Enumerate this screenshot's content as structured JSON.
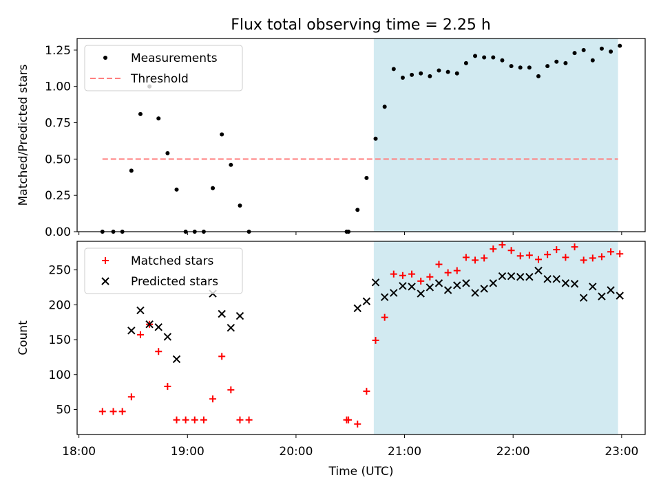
{
  "title": "Flux total observing time = 2.25 h",
  "colors": {
    "observing_span": "#add8e6",
    "measurement": "#000000",
    "threshold": "#ff7f7f",
    "matched": "#ff0000",
    "predicted": "#000000"
  },
  "chart_data": [
    {
      "type": "scatter",
      "ylabel": "Matched/Predicted stars",
      "xlim": [
        "17:59",
        "23:13"
      ],
      "ylim": [
        0,
        1.33
      ],
      "yticks": [
        "0.00",
        "0.25",
        "0.50",
        "0.75",
        "1.00",
        "1.25"
      ],
      "legend": {
        "placement": "top-left",
        "entries": [
          "Measurements",
          "Threshold"
        ]
      },
      "shaded_span": [
        "20:43",
        "22:58"
      ],
      "threshold": {
        "name": "Threshold",
        "y": 0.5,
        "x_start": "18:13",
        "x_end": "22:58"
      },
      "series": [
        {
          "name": "Measurements",
          "marker": "dot",
          "x": [
            "18:13",
            "18:19",
            "18:24",
            "18:29",
            "18:34",
            "18:39",
            "18:44",
            "18:49",
            "18:54",
            "18:59",
            "19:04",
            "19:09",
            "19:14",
            "19:19",
            "19:24",
            "19:29",
            "19:34",
            "20:28",
            "20:29",
            "20:34",
            "20:39",
            "20:44",
            "20:49",
            "20:54",
            "20:59",
            "21:04",
            "21:09",
            "21:14",
            "21:19",
            "21:24",
            "21:29",
            "21:34",
            "21:39",
            "21:44",
            "21:49",
            "21:54",
            "21:59",
            "22:04",
            "22:09",
            "22:14",
            "22:19",
            "22:24",
            "22:29",
            "22:34",
            "22:39",
            "22:44",
            "22:49",
            "22:54",
            "22:59"
          ],
          "y": [
            0.0,
            0.0,
            0.0,
            0.42,
            0.81,
            1.0,
            0.78,
            0.54,
            0.29,
            0.0,
            0.0,
            0.0,
            0.3,
            0.67,
            0.46,
            0.18,
            0.0,
            0.0,
            0.0,
            0.15,
            0.37,
            0.64,
            0.86,
            1.12,
            1.06,
            1.08,
            1.09,
            1.07,
            1.11,
            1.1,
            1.09,
            1.16,
            1.21,
            1.2,
            1.2,
            1.18,
            1.14,
            1.13,
            1.13,
            1.07,
            1.14,
            1.17,
            1.16,
            1.23,
            1.25,
            1.18,
            1.26,
            1.24,
            1.28
          ]
        }
      ]
    },
    {
      "type": "scatter",
      "xlabel": "Time (UTC)",
      "ylabel": "Count",
      "xlim": [
        "17:59",
        "23:13"
      ],
      "ylim": [
        14,
        291
      ],
      "xticks": [
        "18:00",
        "19:00",
        "20:00",
        "21:00",
        "22:00",
        "23:00"
      ],
      "yticks": [
        "50",
        "100",
        "150",
        "200",
        "250"
      ],
      "legend": {
        "placement": "top-left",
        "entries": [
          "Matched stars",
          "Predicted stars"
        ]
      },
      "shaded_span": [
        "20:43",
        "22:58"
      ],
      "series": [
        {
          "name": "Matched stars",
          "marker": "plus",
          "x": [
            "18:13",
            "18:19",
            "18:24",
            "18:29",
            "18:34",
            "18:39",
            "18:44",
            "18:49",
            "18:54",
            "18:59",
            "19:04",
            "19:09",
            "19:14",
            "19:19",
            "19:24",
            "19:29",
            "19:34",
            "20:28",
            "20:29",
            "20:34",
            "20:39",
            "20:44",
            "20:49",
            "20:54",
            "20:59",
            "21:04",
            "21:09",
            "21:14",
            "21:19",
            "21:24",
            "21:29",
            "21:34",
            "21:39",
            "21:44",
            "21:49",
            "21:54",
            "21:59",
            "22:04",
            "22:09",
            "22:14",
            "22:19",
            "22:24",
            "22:29",
            "22:34",
            "22:39",
            "22:44",
            "22:49",
            "22:54",
            "22:59"
          ],
          "y": [
            47,
            47,
            47,
            68,
            157,
            172,
            133,
            83,
            35,
            35,
            35,
            35,
            65,
            126,
            78,
            35,
            35,
            35,
            35,
            29,
            76,
            149,
            182,
            244,
            242,
            244,
            234,
            240,
            258,
            246,
            249,
            268,
            264,
            267,
            280,
            286,
            278,
            270,
            271,
            265,
            272,
            279,
            268,
            283,
            264,
            267,
            269,
            276,
            273
          ]
        },
        {
          "name": "Predicted stars",
          "marker": "x",
          "x": [
            "18:29",
            "18:34",
            "18:39",
            "18:44",
            "18:49",
            "18:54",
            "19:14",
            "19:19",
            "19:24",
            "19:29",
            "20:34",
            "20:39",
            "20:44",
            "20:49",
            "20:54",
            "20:59",
            "21:04",
            "21:09",
            "21:14",
            "21:19",
            "21:24",
            "21:29",
            "21:34",
            "21:39",
            "21:44",
            "21:49",
            "21:54",
            "21:59",
            "22:04",
            "22:09",
            "22:14",
            "22:19",
            "22:24",
            "22:29",
            "22:34",
            "22:39",
            "22:44",
            "22:49",
            "22:54",
            "22:59"
          ],
          "y": [
            163,
            192,
            172,
            168,
            154,
            122,
            216,
            187,
            167,
            184,
            195,
            205,
            232,
            211,
            217,
            227,
            226,
            216,
            225,
            231,
            221,
            228,
            231,
            217,
            223,
            231,
            241,
            241,
            240,
            240,
            249,
            237,
            237,
            231,
            230,
            210,
            226,
            212,
            221,
            213
          ]
        }
      ]
    }
  ]
}
